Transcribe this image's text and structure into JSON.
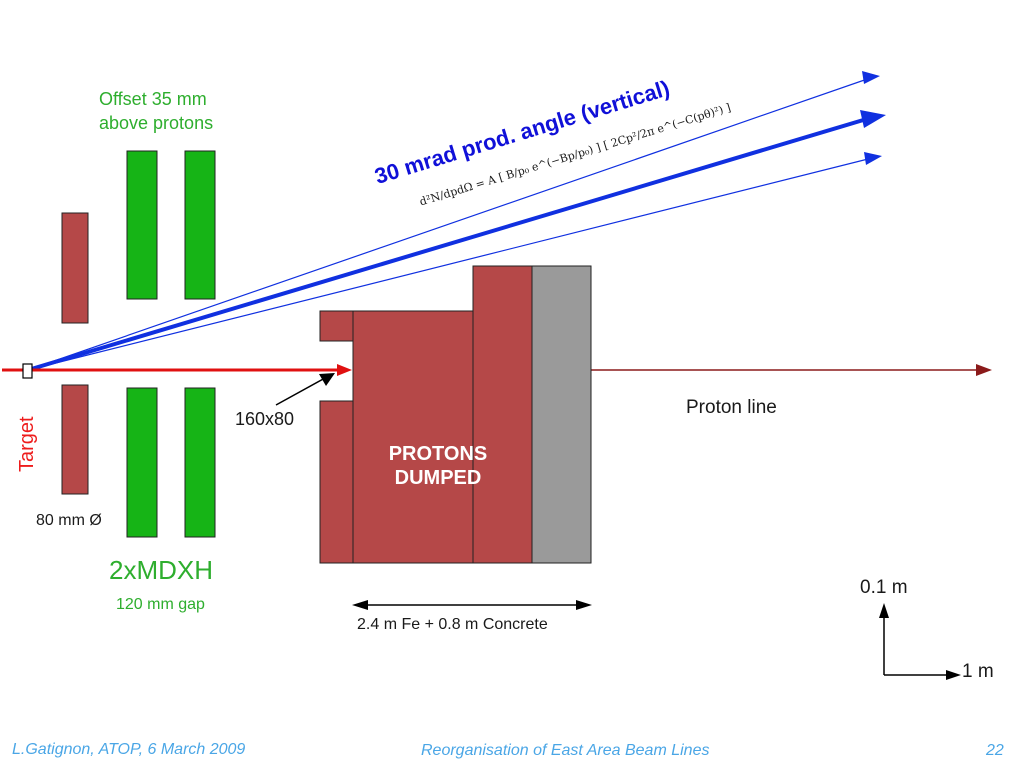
{
  "labels": {
    "offset_line1": "Offset 35 mm",
    "offset_line2": "above protons",
    "target": "Target",
    "diameter": "80 mm Ø",
    "magnets": "2xMDXH",
    "gap": "120 mm gap",
    "aperture": "160x80",
    "dump_line1": "PROTONS",
    "dump_line2": "DUMPED",
    "proton_line": "Proton line",
    "shield_length": "2.4 m Fe + 0.8 m Concrete",
    "angle": "30 mrad prod. angle (vertical)",
    "scale_vertical": "0.1 m",
    "scale_horizontal": "1 m"
  },
  "formula": "d²N/dpdΩ = A [ B/p₀ e^(−Bp/p₀) ] [ 2Cp²/2π e^(−C(pθ)²) ]",
  "footer": {
    "author": "L.Gatignon, ATOP, 6 March 2009",
    "title": "Reorganisation of  East Area Beam Lines",
    "page": "22"
  },
  "colors": {
    "magnet_green": "#16b416",
    "collimator_red": "#b54848",
    "concrete_gray": "#9a9a9a",
    "beam_blue": "#1030e0",
    "proton_red": "#e01010",
    "proton_line_dark": "#8b1a1a"
  }
}
